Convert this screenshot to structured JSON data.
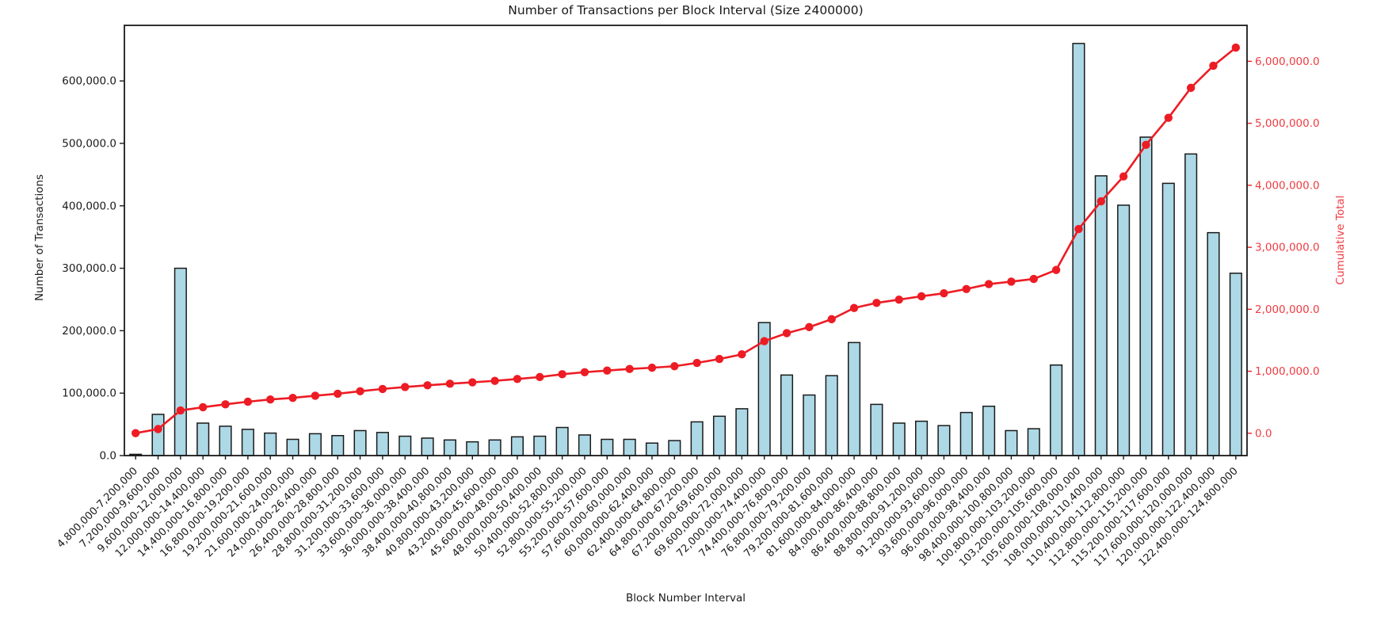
{
  "title": "Number of Transactions per Block Interval (Size 2400000)",
  "axes": {
    "x_label": "Block Number Interval",
    "y_left_label": "Number of Transactions",
    "y_right_label": "Cumulative Total",
    "y_left_tick_labels": [
      "0.0",
      "100,000.0",
      "200,000.0",
      "300,000.0",
      "400,000.0",
      "500,000.0",
      "600,000.0"
    ],
    "y_left_tick_values": [
      0,
      100000,
      200000,
      300000,
      400000,
      500000,
      600000
    ],
    "y_right_tick_labels": [
      "0.0",
      "1,000,000.0",
      "2,000,000.0",
      "3,000,000.0",
      "4,000,000.0",
      "5,000,000.0",
      "6,000,000.0"
    ],
    "y_right_tick_values": [
      0,
      1000000,
      2000000,
      3000000,
      4000000,
      5000000,
      6000000
    ]
  },
  "colors": {
    "bar_fill": "#add8e6",
    "bar_edge": "#1a1a1a",
    "line": "#ed1c24",
    "right_axis_text": "#f03b41",
    "text": "#1a1a1a",
    "spine": "#1a1a1a",
    "background": "#ffffff"
  },
  "chart_data": {
    "type": "bar",
    "title": "Number of Transactions per Block Interval (Size 2400000)",
    "xlabel": "Block Number Interval",
    "ylabel_left": "Number of Transactions",
    "ylabel_right": "Cumulative Total",
    "grid": false,
    "legend": "none",
    "y_left_range": [
      0,
      689000
    ],
    "y_right_range": [
      -360000,
      6580000
    ],
    "categories": [
      "4,800,000-7,200,000",
      "7,200,000-9,600,000",
      "9,600,000-12,000,000",
      "12,000,000-14,400,000",
      "14,400,000-16,800,000",
      "16,800,000-19,200,000",
      "19,200,000-21,600,000",
      "21,600,000-24,000,000",
      "24,000,000-26,400,000",
      "26,400,000-28,800,000",
      "28,800,000-31,200,000",
      "31,200,000-33,600,000",
      "33,600,000-36,000,000",
      "36,000,000-38,400,000",
      "38,400,000-40,800,000",
      "40,800,000-43,200,000",
      "43,200,000-45,600,000",
      "45,600,000-48,000,000",
      "48,000,000-50,400,000",
      "50,400,000-52,800,000",
      "52,800,000-55,200,000",
      "55,200,000-57,600,000",
      "57,600,000-60,000,000",
      "60,000,000-62,400,000",
      "62,400,000-64,800,000",
      "64,800,000-67,200,000",
      "67,200,000-69,600,000",
      "69,600,000-72,000,000",
      "72,000,000-74,400,000",
      "74,400,000-76,800,000",
      "76,800,000-79,200,000",
      "79,200,000-81,600,000",
      "81,600,000-84,000,000",
      "84,000,000-86,400,000",
      "86,400,000-88,800,000",
      "88,800,000-91,200,000",
      "91,200,000-93,600,000",
      "93,600,000-96,000,000",
      "96,000,000-98,400,000",
      "98,400,000-100,800,000",
      "100,800,000-103,200,000",
      "103,200,000-105,600,000",
      "105,600,000-108,000,000",
      "108,000,000-110,400,000",
      "110,400,000-112,800,000",
      "112,800,000-115,200,000",
      "115,200,000-117,600,000",
      "117,600,000-120,000,000",
      "120,000,000-122,400,000",
      "122,400,000-124,800,000"
    ],
    "series": [
      {
        "name": "Number of Transactions",
        "type": "bar",
        "axis": "left",
        "values": [
          2000,
          66000,
          300000,
          52000,
          47000,
          42000,
          36000,
          26000,
          35000,
          32000,
          40000,
          37000,
          31000,
          28000,
          25000,
          22000,
          25000,
          30000,
          31000,
          45000,
          33000,
          26000,
          26000,
          20000,
          24000,
          54000,
          63000,
          75000,
          213000,
          129000,
          97000,
          128000,
          181000,
          82000,
          52000,
          55000,
          48000,
          69000,
          79000,
          40000,
          43000,
          145000,
          660000,
          448000,
          401000,
          510000,
          436000,
          483000,
          357000,
          292000
        ]
      },
      {
        "name": "Cumulative Total",
        "type": "line",
        "axis": "right",
        "marker": "circle",
        "values": [
          2000,
          68000,
          368000,
          420000,
          467000,
          509000,
          545000,
          571000,
          606000,
          638000,
          678000,
          715000,
          746000,
          774000,
          799000,
          821000,
          846000,
          876000,
          907000,
          952000,
          985000,
          1011000,
          1037000,
          1057000,
          1081000,
          1135000,
          1198000,
          1273000,
          1486000,
          1615000,
          1712000,
          1840000,
          2021000,
          2103000,
          2155000,
          2210000,
          2258000,
          2327000,
          2406000,
          2446000,
          2489000,
          2634000,
          3294000,
          3742000,
          4143000,
          4653000,
          5089000,
          5572000,
          5929000,
          6221000
        ]
      }
    ]
  }
}
